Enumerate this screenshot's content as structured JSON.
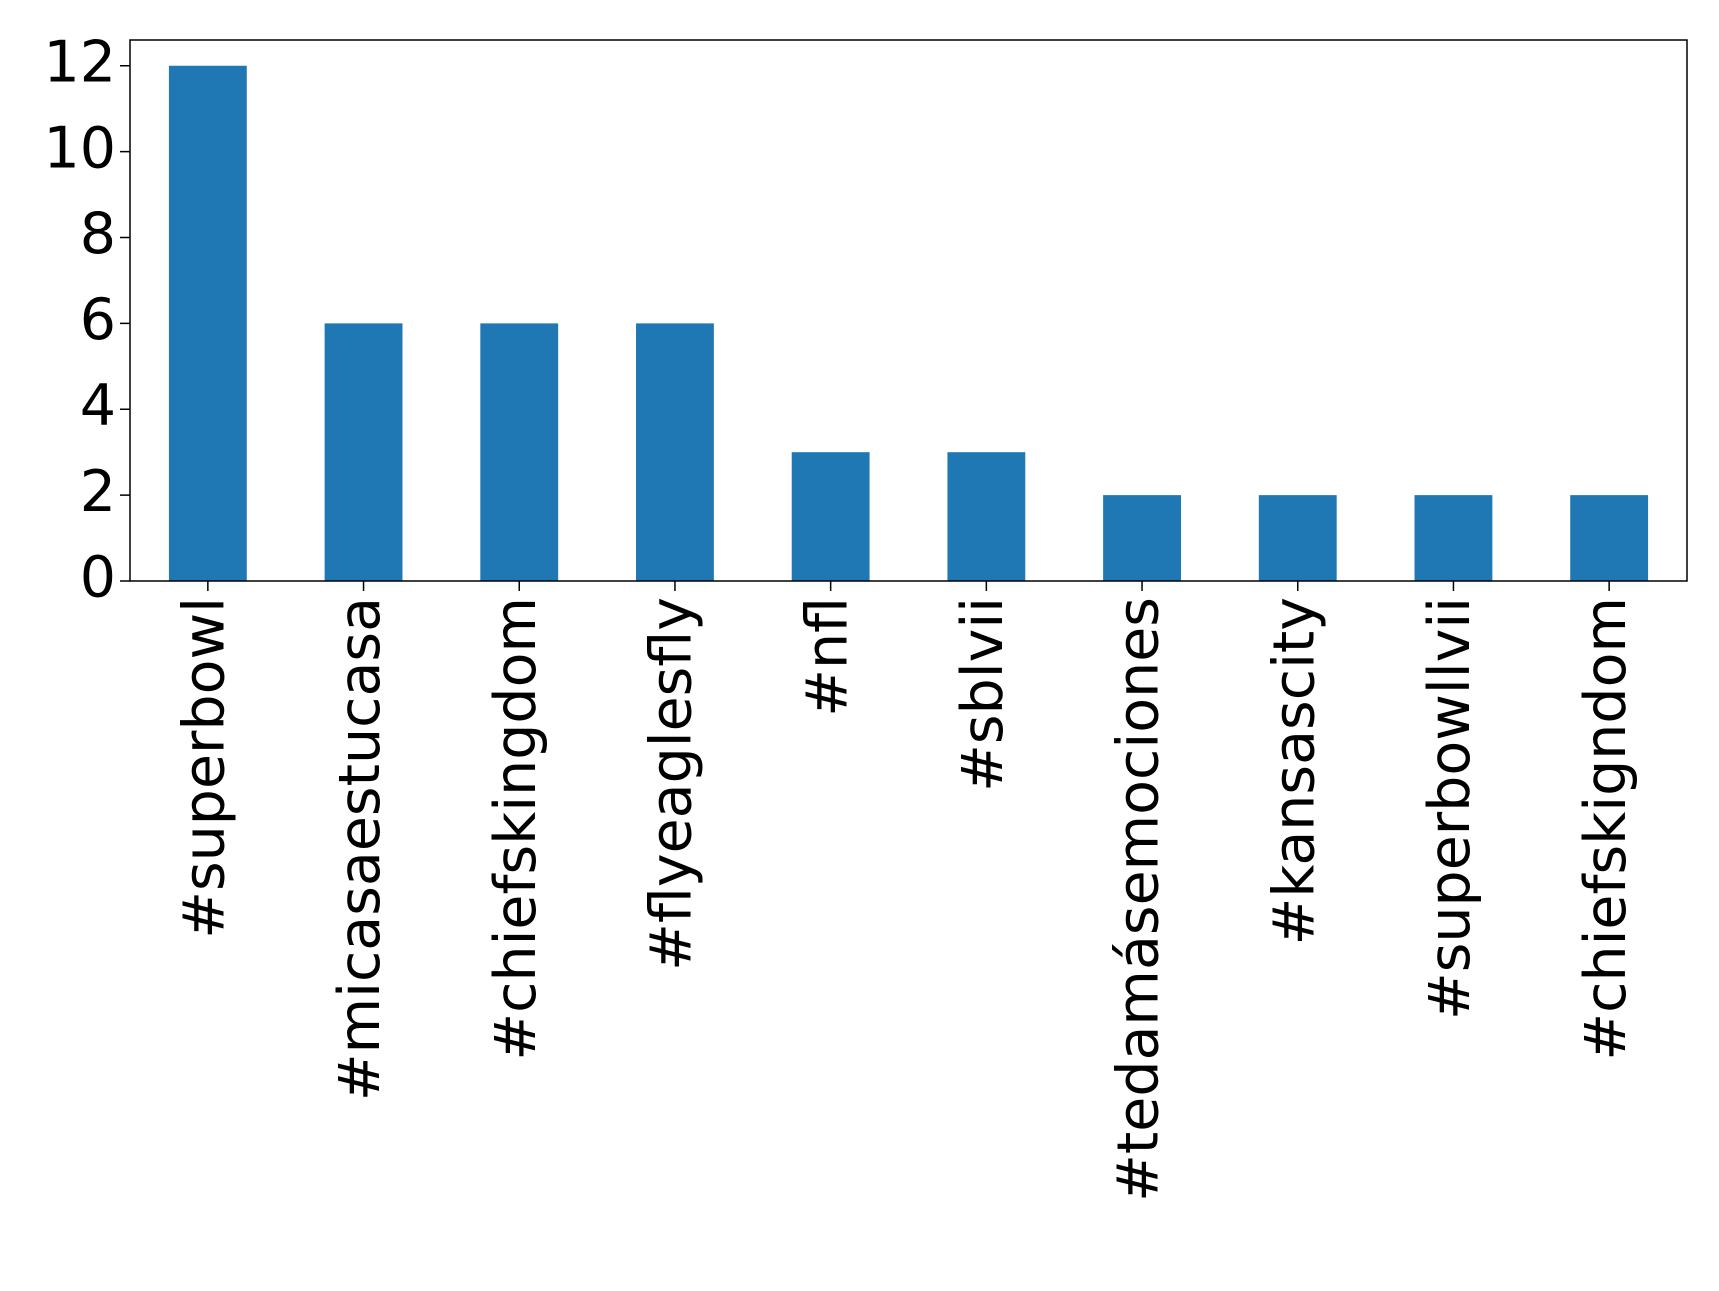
{
  "chart_data": {
    "type": "bar",
    "categories": [
      "#superbowl",
      "#micasaestucasa",
      "#chiefskingdom",
      "#flyeaglesfly",
      "#nfl",
      "#sblvii",
      "#tedamásemociones",
      "#kansascity",
      "#superbowllvii",
      "#chiefskigndom"
    ],
    "values": [
      12,
      6,
      6,
      6,
      3,
      3,
      2,
      2,
      2,
      2
    ],
    "color": "#1f77b4",
    "ylim": [
      0,
      12.6
    ],
    "yticks": [
      0,
      2,
      4,
      6,
      8,
      10,
      12
    ],
    "grid": false
  }
}
